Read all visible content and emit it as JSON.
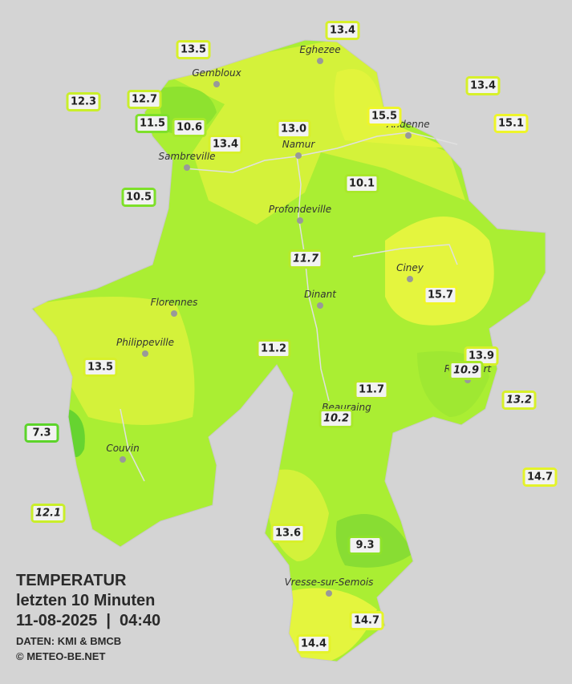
{
  "title": "TEMPERATUR",
  "subtitle": "letzten 10 Minuten",
  "timestamp": "11-08-2025  |  04:40",
  "source": "DATEN: KMI & BMCB",
  "copyright": "© METEO-BE.NET",
  "cities": [
    "Eghezee",
    "Gembloux",
    "Andenne",
    "Namur",
    "Sambreville",
    "Profondeville",
    "Ciney",
    "Florennes",
    "Dinant",
    "Philippeville",
    "Rochefort",
    "Beauraing",
    "Couvin",
    "Vresse-sur-Semois"
  ],
  "stations": [
    {
      "label": "13.4",
      "border": "#d7f02a",
      "italic": false
    },
    {
      "label": "13.5",
      "border": "#d7f02a",
      "italic": false
    },
    {
      "label": "12.3",
      "border": "#c9ee2a",
      "italic": false
    },
    {
      "label": "12.7",
      "border": "#c9ee2a",
      "italic": false
    },
    {
      "label": "11.5",
      "border": "#7ee02a",
      "italic": false
    },
    {
      "label": "10.6",
      "border": "#a8e82a",
      "italic": false
    },
    {
      "label": "13.4",
      "border": "#d7f02a",
      "italic": false
    },
    {
      "label": "13.0",
      "border": "#d7f02a",
      "italic": false
    },
    {
      "label": "15.5",
      "border": "#eef52a",
      "italic": false
    },
    {
      "label": "13.4",
      "border": "#d7f02a",
      "italic": false
    },
    {
      "label": "15.1",
      "border": "#eef52a",
      "italic": false
    },
    {
      "label": "10.5",
      "border": "#7ee02a",
      "italic": false
    },
    {
      "label": "10.1",
      "border": "#a8e82a",
      "italic": false
    },
    {
      "label": "11.7",
      "border": "#b5ea2a",
      "italic": true
    },
    {
      "label": "15.7",
      "border": "#eef52a",
      "italic": false
    },
    {
      "label": "11.2",
      "border": "#b5ea2a",
      "italic": false
    },
    {
      "label": "13.9",
      "border": "#d7f02a",
      "italic": false
    },
    {
      "label": "10.9",
      "border": "#a8e82a",
      "italic": true
    },
    {
      "label": "13.5",
      "border": "#d7f02a",
      "italic": false
    },
    {
      "label": "13.2",
      "border": "#d7f02a",
      "italic": true
    },
    {
      "label": "11.7",
      "border": "#b5ea2a",
      "italic": false
    },
    {
      "label": "10.2",
      "border": "#a8e82a",
      "italic": true
    },
    {
      "label": "7.3",
      "border": "#5cd42a",
      "italic": false
    },
    {
      "label": "14.7",
      "border": "#e4f32a",
      "italic": false
    },
    {
      "label": "12.1",
      "border": "#c9ee2a",
      "italic": true
    },
    {
      "label": "13.6",
      "border": "#d7f02a",
      "italic": false
    },
    {
      "label": "9.3",
      "border": "#8ee22a",
      "italic": false
    },
    {
      "label": "14.7",
      "border": "#e4f32a",
      "italic": false
    },
    {
      "label": "14.4",
      "border": "#e4f32a",
      "italic": false
    }
  ]
}
